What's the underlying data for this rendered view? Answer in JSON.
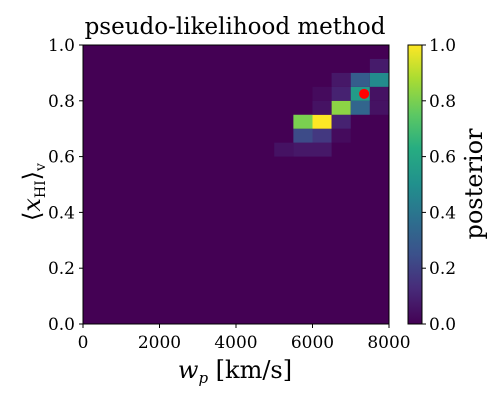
{
  "chart_data": {
    "type": "heatmap",
    "title": "pseudo-likelihood method",
    "xlabel_main": "w",
    "xlabel_sub": "p",
    "xlabel_units": " [km/s]",
    "ylabel_left": "⟨",
    "ylabel_var": "x",
    "ylabel_sub": "HI",
    "ylabel_right": "⟩",
    "ylabel_sub2": "v",
    "colorbar_label": "posterior",
    "xlim": [
      0,
      8000
    ],
    "ylim": [
      0,
      1.0
    ],
    "xticks": [
      "0",
      "2000",
      "4000",
      "6000",
      "8000"
    ],
    "yticks": [
      "0.0",
      "0.2",
      "0.4",
      "0.6",
      "0.8",
      "1.0"
    ],
    "cbar_ticks": [
      "0.0",
      "0.2",
      "0.4",
      "0.6",
      "0.8",
      "1.0"
    ],
    "clim": [
      0,
      1
    ],
    "colormap": "viridis",
    "background_value": 0.0,
    "cell_width": 500,
    "cell_height": 0.05,
    "cells": [
      {
        "x": 5000,
        "y": 0.6,
        "v": 0.05
      },
      {
        "x": 5500,
        "y": 0.6,
        "v": 0.07
      },
      {
        "x": 6000,
        "y": 0.6,
        "v": 0.07
      },
      {
        "x": 5500,
        "y": 0.65,
        "v": 0.23
      },
      {
        "x": 6000,
        "y": 0.65,
        "v": 0.17
      },
      {
        "x": 6500,
        "y": 0.65,
        "v": 0.03
      },
      {
        "x": 5500,
        "y": 0.7,
        "v": 0.8
      },
      {
        "x": 6000,
        "y": 0.7,
        "v": 1.0
      },
      {
        "x": 6500,
        "y": 0.7,
        "v": 0.1
      },
      {
        "x": 6000,
        "y": 0.75,
        "v": 0.05
      },
      {
        "x": 6500,
        "y": 0.75,
        "v": 0.83
      },
      {
        "x": 7000,
        "y": 0.75,
        "v": 0.33
      },
      {
        "x": 7500,
        "y": 0.75,
        "v": 0.05
      },
      {
        "x": 6000,
        "y": 0.8,
        "v": 0.03
      },
      {
        "x": 6500,
        "y": 0.8,
        "v": 0.1
      },
      {
        "x": 7000,
        "y": 0.8,
        "v": 0.55
      },
      {
        "x": 7500,
        "y": 0.8,
        "v": 0.05
      },
      {
        "x": 6500,
        "y": 0.85,
        "v": 0.07
      },
      {
        "x": 7000,
        "y": 0.85,
        "v": 0.3
      },
      {
        "x": 7500,
        "y": 0.85,
        "v": 0.48
      },
      {
        "x": 7500,
        "y": 0.9,
        "v": 0.08
      }
    ],
    "marker": {
      "x": 7350,
      "y": 0.825,
      "color": "#ff0000"
    }
  }
}
